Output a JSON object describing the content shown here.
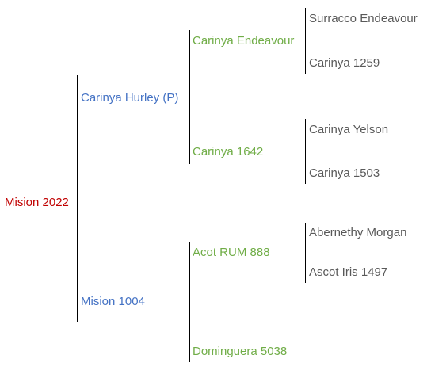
{
  "pedigree": {
    "subject": {
      "name": "Mision 2022",
      "color": "#c00000"
    },
    "sire": {
      "name": "Carinya Hurley (P)",
      "color": "#4472c4",
      "sire": {
        "name": "Carinya Endeavour",
        "color": "#70ad47",
        "sire": {
          "name": "Surracco Endeavour",
          "color": "#595959"
        },
        "dam": {
          "name": "Carinya 1259",
          "color": "#595959"
        }
      },
      "dam": {
        "name": "Carinya 1642",
        "color": "#70ad47",
        "sire": {
          "name": "Carinya Yelson",
          "color": "#595959"
        },
        "dam": {
          "name": "Carinya 1503",
          "color": "#595959"
        }
      }
    },
    "dam": {
      "name": "Mision 1004",
      "color": "#4472c4",
      "sire": {
        "name": "Acot RUM 888",
        "color": "#70ad47",
        "sire": {
          "name": "Abernethy Morgan",
          "color": "#595959"
        },
        "dam": {
          "name": "Ascot Iris 1497",
          "color": "#595959"
        }
      },
      "dam": {
        "name": "Dominguera 5038",
        "color": "#70ad47"
      }
    }
  }
}
